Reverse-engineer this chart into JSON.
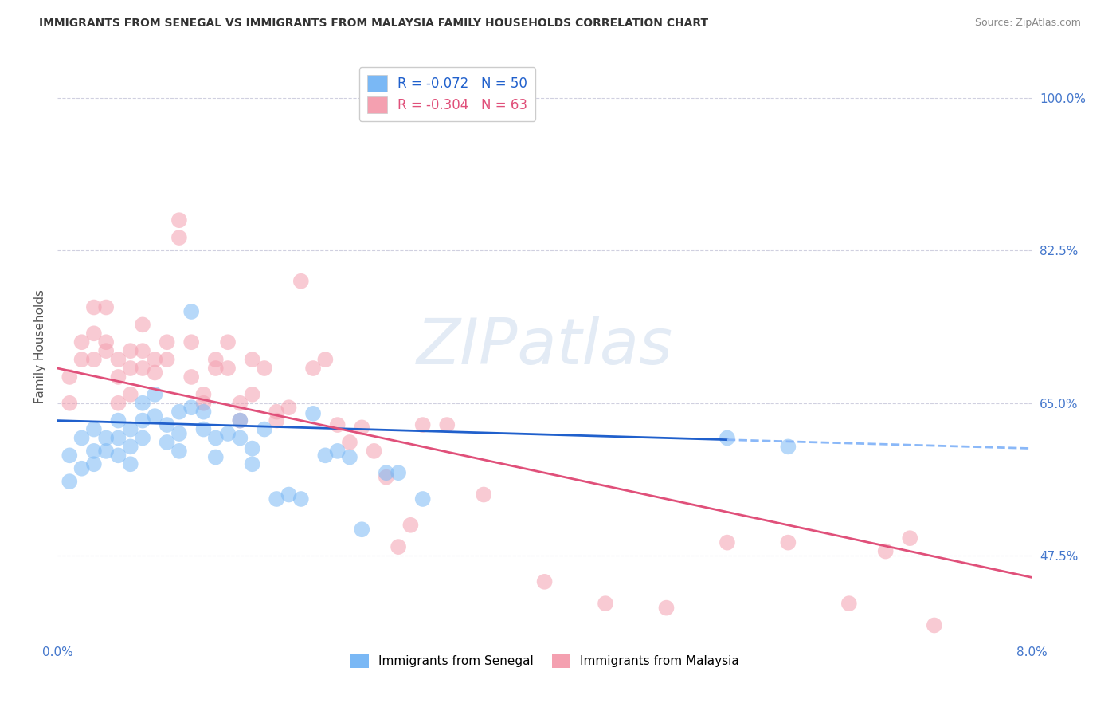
{
  "title": "IMMIGRANTS FROM SENEGAL VS IMMIGRANTS FROM MALAYSIA FAMILY HOUSEHOLDS CORRELATION CHART",
  "source": "Source: ZipAtlas.com",
  "ylabel": "Family Households",
  "y_ticks": [
    0.475,
    0.65,
    0.825,
    1.0
  ],
  "y_tick_labels": [
    "47.5%",
    "65.0%",
    "82.5%",
    "100.0%"
  ],
  "x_ticks": [
    0.0,
    0.02,
    0.04,
    0.06,
    0.08
  ],
  "xlim": [
    0.0,
    0.08
  ],
  "ylim": [
    0.38,
    1.05
  ],
  "legend_label_senegal": "Immigrants from Senegal",
  "legend_label_malaysia": "Immigrants from Malaysia",
  "watermark": "ZIPatlas",
  "senegal_R": -0.072,
  "senegal_N": 50,
  "malaysia_R": -0.304,
  "malaysia_N": 63,
  "scatter_color_senegal": "#7ab8f5",
  "scatter_color_malaysia": "#f4a0b0",
  "trendline_color_senegal": "#2060cc",
  "trendline_color_malaysia": "#e0507a",
  "trendline_dashed_color": "#8ab8f8",
  "background_color": "#ffffff",
  "grid_color": "#d0d0e0",
  "title_color": "#333333",
  "source_color": "#888888",
  "axis_label_color": "#4477cc",
  "senegal_x": [
    0.001,
    0.001,
    0.002,
    0.002,
    0.003,
    0.003,
    0.003,
    0.004,
    0.004,
    0.005,
    0.005,
    0.005,
    0.006,
    0.006,
    0.006,
    0.007,
    0.007,
    0.007,
    0.008,
    0.008,
    0.009,
    0.009,
    0.01,
    0.01,
    0.01,
    0.011,
    0.011,
    0.012,
    0.012,
    0.013,
    0.013,
    0.014,
    0.015,
    0.015,
    0.016,
    0.016,
    0.017,
    0.018,
    0.019,
    0.02,
    0.021,
    0.022,
    0.023,
    0.024,
    0.025,
    0.027,
    0.028,
    0.03,
    0.055,
    0.06
  ],
  "senegal_y": [
    0.59,
    0.56,
    0.61,
    0.575,
    0.62,
    0.595,
    0.58,
    0.61,
    0.595,
    0.63,
    0.61,
    0.59,
    0.62,
    0.6,
    0.58,
    0.65,
    0.61,
    0.63,
    0.66,
    0.635,
    0.625,
    0.605,
    0.64,
    0.615,
    0.595,
    0.755,
    0.645,
    0.64,
    0.62,
    0.61,
    0.588,
    0.615,
    0.63,
    0.61,
    0.58,
    0.598,
    0.62,
    0.54,
    0.545,
    0.54,
    0.638,
    0.59,
    0.595,
    0.588,
    0.505,
    0.57,
    0.57,
    0.54,
    0.61,
    0.6
  ],
  "malaysia_x": [
    0.001,
    0.001,
    0.002,
    0.002,
    0.003,
    0.003,
    0.003,
    0.004,
    0.004,
    0.004,
    0.005,
    0.005,
    0.005,
    0.006,
    0.006,
    0.006,
    0.007,
    0.007,
    0.007,
    0.008,
    0.008,
    0.009,
    0.009,
    0.01,
    0.01,
    0.011,
    0.011,
    0.012,
    0.012,
    0.013,
    0.013,
    0.014,
    0.014,
    0.015,
    0.015,
    0.016,
    0.016,
    0.017,
    0.018,
    0.018,
    0.019,
    0.02,
    0.021,
    0.022,
    0.023,
    0.024,
    0.025,
    0.026,
    0.027,
    0.028,
    0.029,
    0.03,
    0.032,
    0.035,
    0.04,
    0.045,
    0.05,
    0.055,
    0.06,
    0.065,
    0.068,
    0.07,
    0.072
  ],
  "malaysia_y": [
    0.65,
    0.68,
    0.72,
    0.7,
    0.76,
    0.73,
    0.7,
    0.76,
    0.72,
    0.71,
    0.68,
    0.7,
    0.65,
    0.71,
    0.69,
    0.66,
    0.74,
    0.71,
    0.69,
    0.7,
    0.685,
    0.72,
    0.7,
    0.86,
    0.84,
    0.72,
    0.68,
    0.66,
    0.65,
    0.7,
    0.69,
    0.72,
    0.69,
    0.65,
    0.63,
    0.7,
    0.66,
    0.69,
    0.64,
    0.63,
    0.645,
    0.79,
    0.69,
    0.7,
    0.625,
    0.605,
    0.622,
    0.595,
    0.565,
    0.485,
    0.51,
    0.625,
    0.625,
    0.545,
    0.445,
    0.42,
    0.415,
    0.49,
    0.49,
    0.42,
    0.48,
    0.495,
    0.395
  ],
  "senegal_trend_x0": 0.0,
  "senegal_trend_x_solid_end": 0.055,
  "senegal_trend_x_dash_end": 0.08,
  "senegal_trend_y0": 0.63,
  "senegal_trend_slope": -0.4,
  "malaysia_trend_x0": 0.0,
  "malaysia_trend_x1": 0.08,
  "malaysia_trend_y0": 0.69,
  "malaysia_trend_y1": 0.45
}
